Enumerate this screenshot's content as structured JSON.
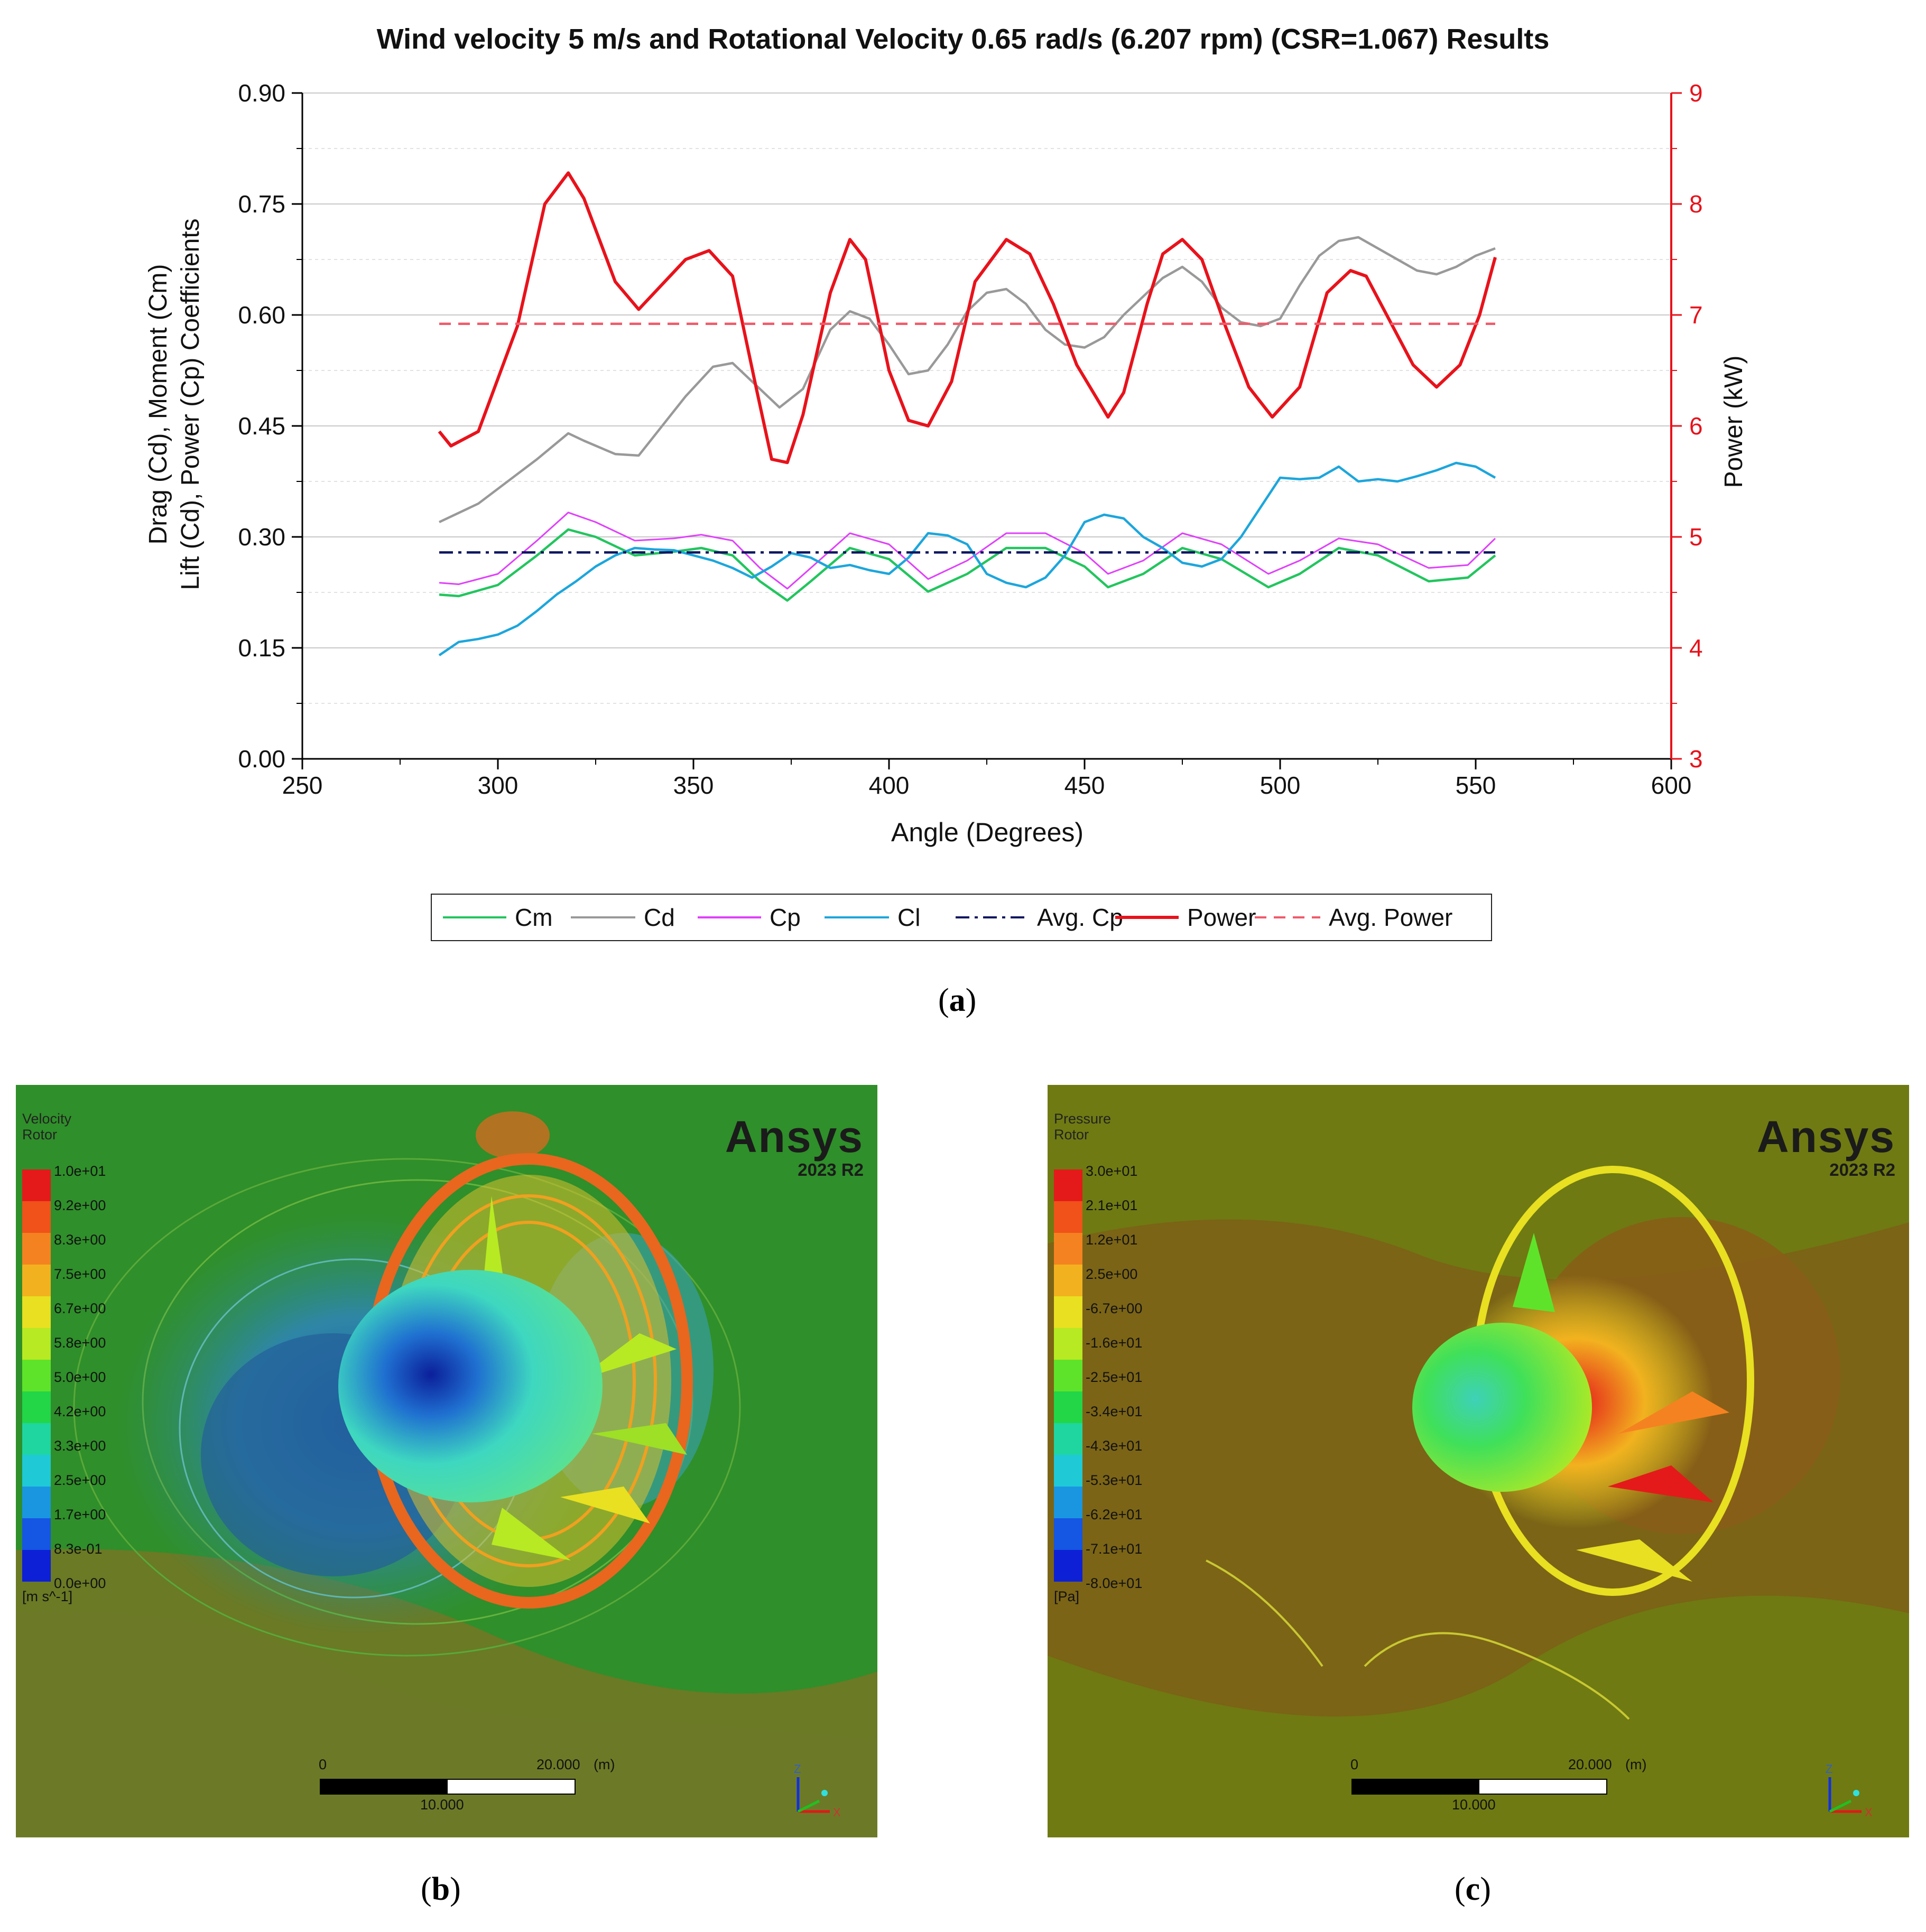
{
  "chart_data": {
    "type": "line",
    "title": "Wind velocity 5 m/s and Rotational Velocity 0.65 rad/s (6.207 rpm) (CSR=1.067) Results",
    "xlabel": "Angle (Degrees)",
    "ylabel_left_line1": "Drag (Cd), Moment (Cm)",
    "ylabel_left_line2": "Lift (Cd), Power (Cp) Coefficients",
    "ylabel_right": "Power (kW)",
    "xlim": [
      250,
      600
    ],
    "ylim_left": [
      0.0,
      0.9
    ],
    "ylim_right": [
      3,
      9
    ],
    "x_ticks": [
      "250",
      "300",
      "350",
      "400",
      "450",
      "500",
      "550",
      "600"
    ],
    "y_left_ticks": [
      "0.00",
      "0.15",
      "0.30",
      "0.45",
      "0.60",
      "0.75",
      "0.90"
    ],
    "y_right_ticks": [
      "3",
      "4",
      "5",
      "6",
      "7",
      "8",
      "9"
    ],
    "x_ticks_values": [
      250,
      300,
      350,
      400,
      450,
      500,
      550,
      600
    ],
    "y_left_ticks_values": [
      0,
      0.15,
      0.3,
      0.45,
      0.6,
      0.75,
      0.9
    ],
    "y_right_ticks_values": [
      3,
      4,
      5,
      6,
      7,
      8,
      9
    ],
    "grid": true,
    "legend_position": "bottom",
    "series": [
      {
        "name": "Cm",
        "axis": "left",
        "color": "#22c55e",
        "style": "solid",
        "x": [
          285,
          290,
          300,
          310,
          318,
          325,
          335,
          345,
          352,
          360,
          367,
          374,
          380,
          390,
          400,
          410,
          420,
          430,
          440,
          450,
          456,
          465,
          475,
          485,
          497,
          505,
          515,
          525,
          538,
          548,
          555
        ],
        "y": [
          0.222,
          0.22,
          0.235,
          0.275,
          0.31,
          0.3,
          0.275,
          0.28,
          0.285,
          0.275,
          0.24,
          0.214,
          0.24,
          0.285,
          0.27,
          0.226,
          0.25,
          0.285,
          0.285,
          0.26,
          0.232,
          0.25,
          0.285,
          0.27,
          0.232,
          0.25,
          0.285,
          0.275,
          0.24,
          0.245,
          0.275
        ]
      },
      {
        "name": "Cd",
        "axis": "left",
        "color": "#999999",
        "style": "solid",
        "x": [
          285,
          295,
          305,
          310,
          318,
          322,
          330,
          336,
          342,
          348,
          355,
          360,
          365,
          372,
          378,
          385,
          390,
          395,
          400,
          405,
          410,
          415,
          420,
          425,
          430,
          435,
          440,
          445,
          450,
          455,
          460,
          465,
          470,
          475,
          480,
          485,
          490,
          495,
          500,
          505,
          510,
          515,
          520,
          525,
          530,
          535,
          540,
          545,
          550,
          555
        ],
        "y": [
          0.32,
          0.345,
          0.385,
          0.405,
          0.44,
          0.43,
          0.412,
          0.41,
          0.45,
          0.49,
          0.53,
          0.535,
          0.51,
          0.475,
          0.5,
          0.58,
          0.605,
          0.595,
          0.56,
          0.52,
          0.525,
          0.56,
          0.605,
          0.63,
          0.635,
          0.615,
          0.58,
          0.56,
          0.556,
          0.57,
          0.6,
          0.625,
          0.65,
          0.665,
          0.645,
          0.61,
          0.59,
          0.585,
          0.595,
          0.64,
          0.68,
          0.7,
          0.705,
          0.69,
          0.675,
          0.66,
          0.655,
          0.665,
          0.68,
          0.69
        ]
      },
      {
        "name": "Cp",
        "axis": "left",
        "color": "#e040fb",
        "style": "solid",
        "x": [
          285,
          290,
          300,
          310,
          318,
          325,
          335,
          345,
          352,
          360,
          367,
          374,
          380,
          390,
          400,
          410,
          420,
          430,
          440,
          450,
          456,
          465,
          475,
          485,
          497,
          505,
          515,
          525,
          538,
          548,
          555
        ],
        "y": [
          0.238,
          0.236,
          0.25,
          0.295,
          0.333,
          0.32,
          0.295,
          0.298,
          0.303,
          0.295,
          0.258,
          0.23,
          0.258,
          0.305,
          0.29,
          0.243,
          0.268,
          0.305,
          0.305,
          0.278,
          0.25,
          0.268,
          0.305,
          0.29,
          0.25,
          0.268,
          0.298,
          0.29,
          0.258,
          0.262,
          0.298
        ]
      },
      {
        "name": "Cl",
        "axis": "left",
        "color": "#1ca6dc",
        "style": "solid",
        "x": [
          285,
          290,
          295,
          300,
          305,
          310,
          315,
          320,
          325,
          330,
          335,
          340,
          345,
          350,
          355,
          360,
          365,
          370,
          375,
          380,
          385,
          390,
          395,
          400,
          405,
          410,
          415,
          420,
          425,
          430,
          435,
          440,
          445,
          450,
          455,
          460,
          465,
          470,
          475,
          480,
          485,
          490,
          495,
          500,
          505,
          510,
          515,
          520,
          525,
          530,
          535,
          540,
          545,
          550,
          555
        ],
        "y": [
          0.14,
          0.158,
          0.162,
          0.168,
          0.18,
          0.2,
          0.222,
          0.24,
          0.26,
          0.275,
          0.285,
          0.283,
          0.282,
          0.275,
          0.268,
          0.258,
          0.245,
          0.26,
          0.278,
          0.272,
          0.258,
          0.262,
          0.255,
          0.25,
          0.272,
          0.305,
          0.302,
          0.29,
          0.25,
          0.238,
          0.232,
          0.245,
          0.275,
          0.32,
          0.33,
          0.325,
          0.3,
          0.285,
          0.265,
          0.26,
          0.27,
          0.3,
          0.34,
          0.38,
          0.378,
          0.38,
          0.395,
          0.375,
          0.378,
          0.375,
          0.382,
          0.39,
          0.4,
          0.395,
          0.38
        ]
      },
      {
        "name": "Avg. Cp",
        "axis": "left",
        "color": "#0b1560",
        "style": "dashdot",
        "x": [
          285,
          555
        ],
        "y": [
          0.279,
          0.279
        ]
      },
      {
        "name": "Power",
        "axis": "right",
        "color": "#e8121b",
        "style": "solid",
        "x": [
          285,
          288,
          295,
          305,
          312,
          318,
          322,
          330,
          336,
          340,
          348,
          354,
          360,
          366,
          370,
          374,
          378,
          385,
          390,
          394,
          400,
          405,
          410,
          416,
          422,
          430,
          436,
          442,
          448,
          456,
          460,
          466,
          470,
          475,
          480,
          486,
          492,
          498,
          505,
          512,
          518,
          522,
          528,
          534,
          540,
          546,
          551,
          555
        ],
        "y": [
          5.95,
          5.82,
          5.95,
          6.9,
          8.0,
          8.28,
          8.05,
          7.3,
          7.05,
          7.2,
          7.5,
          7.58,
          7.35,
          6.35,
          5.7,
          5.67,
          6.1,
          7.2,
          7.68,
          7.5,
          6.5,
          6.05,
          6.0,
          6.4,
          7.3,
          7.68,
          7.55,
          7.1,
          6.55,
          6.08,
          6.3,
          7.1,
          7.55,
          7.68,
          7.5,
          6.9,
          6.35,
          6.08,
          6.35,
          7.2,
          7.4,
          7.35,
          6.95,
          6.55,
          6.35,
          6.55,
          7.0,
          7.52
        ]
      },
      {
        "name": "Avg. Power",
        "axis": "right",
        "color": "#f05a6a",
        "style": "dashed",
        "x": [
          285,
          555
        ],
        "y": [
          6.92,
          6.92
        ]
      }
    ]
  },
  "captions": {
    "a": "a",
    "b": "b",
    "c": "c"
  },
  "panel_b": {
    "title_line1": "Velocity",
    "title_line2": "Rotor",
    "unit": "[m s^-1]",
    "legend_values": [
      "1.0e+01",
      "9.2e+00",
      "8.3e+00",
      "7.5e+00",
      "6.7e+00",
      "5.8e+00",
      "5.0e+00",
      "4.2e+00",
      "3.3e+00",
      "2.5e+00",
      "1.7e+00",
      "8.3e-01",
      "0.0e+00"
    ],
    "brand": "Ansys",
    "version": "2023 R2",
    "scale_start": "0",
    "scale_end": "20.000",
    "scale_unit": "(m)",
    "scale_mid": "10.000",
    "axis_z": "Z",
    "axis_x": "X"
  },
  "panel_c": {
    "title_line1": "Pressure",
    "title_line2": "Rotor",
    "unit": "[Pa]",
    "legend_values": [
      "3.0e+01",
      "2.1e+01",
      "1.2e+01",
      "2.5e+00",
      "-6.7e+00",
      "-1.6e+01",
      "-2.5e+01",
      "-3.4e+01",
      "-4.3e+01",
      "-5.3e+01",
      "-6.2e+01",
      "-7.1e+01",
      "-8.0e+01"
    ],
    "brand": "Ansys",
    "version": "2023 R2",
    "scale_start": "0",
    "scale_end": "20.000",
    "scale_unit": "(m)",
    "scale_mid": "10.000",
    "axis_z": "Z",
    "axis_x": "X"
  },
  "colormap": [
    "#e41a1a",
    "#f0521a",
    "#f58220",
    "#f2b21f",
    "#e8e021",
    "#b7ea22",
    "#5fe32a",
    "#22d648",
    "#1fd6a0",
    "#1fc9d6",
    "#1a96e0",
    "#1556e3",
    "#0d20d6"
  ]
}
